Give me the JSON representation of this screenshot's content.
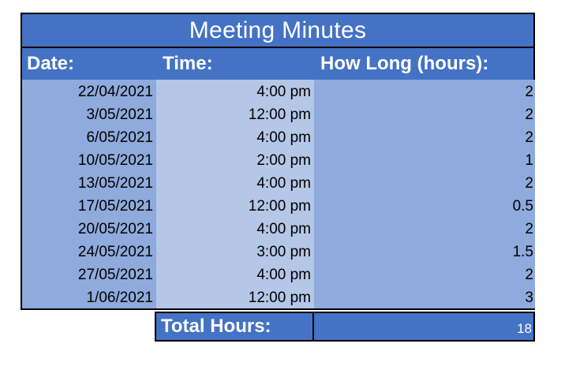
{
  "title": "Meeting Minutes",
  "headers": {
    "date": "Date:",
    "time": "Time:",
    "duration": "How Long (hours):"
  },
  "rows": [
    {
      "date": "22/04/2021",
      "time": "4:00 pm",
      "hours": "2"
    },
    {
      "date": "3/05/2021",
      "time": "12:00 pm",
      "hours": "2"
    },
    {
      "date": "6/05/2021",
      "time": "4:00 pm",
      "hours": "2"
    },
    {
      "date": "10/05/2021",
      "time": "2:00 pm",
      "hours": "1"
    },
    {
      "date": "13/05/2021",
      "time": "4:00 pm",
      "hours": "2"
    },
    {
      "date": "17/05/2021",
      "time": "12:00 pm",
      "hours": "0.5"
    },
    {
      "date": "20/05/2021",
      "time": "4:00 pm",
      "hours": "2"
    },
    {
      "date": "24/05/2021",
      "time": "3:00 pm",
      "hours": "1.5"
    },
    {
      "date": "27/05/2021",
      "time": "4:00 pm",
      "hours": "2"
    },
    {
      "date": "1/06/2021",
      "time": "12:00 pm",
      "hours": "3"
    }
  ],
  "total": {
    "label": "Total Hours:",
    "value": "18"
  },
  "colors": {
    "header_blue": "#4472C4",
    "date_column": "#8FAADC",
    "time_column": "#B4C7E7",
    "duration_column": "#8FAADC"
  }
}
